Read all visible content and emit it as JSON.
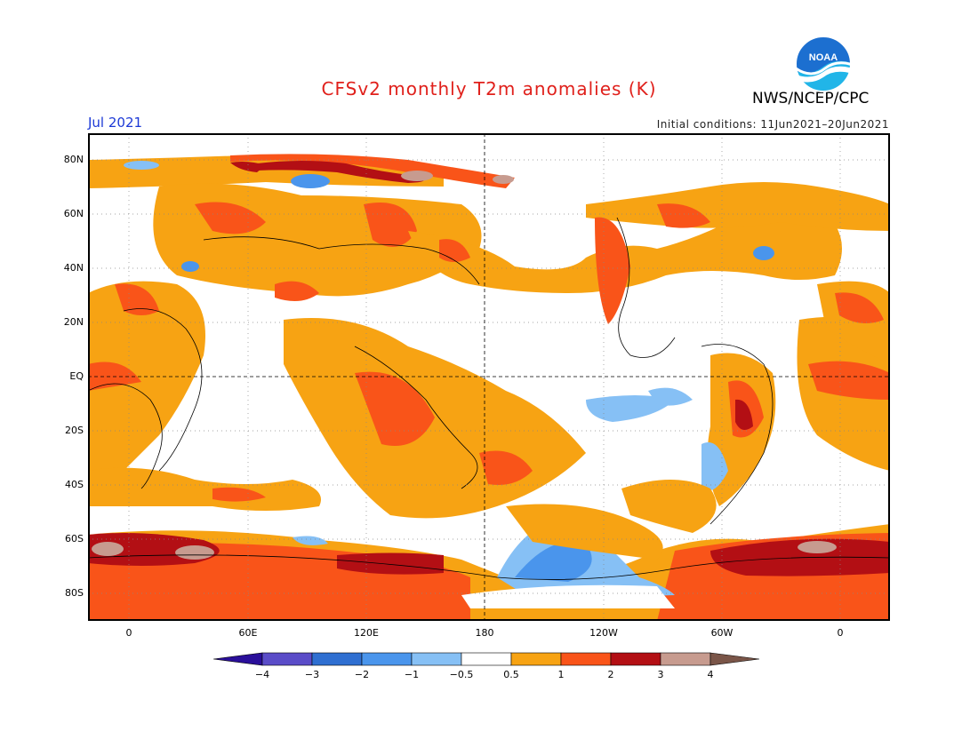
{
  "header": {
    "title": "CFSv2 monthly T2m anomalies (K)",
    "month": "Jul 2021",
    "agency": "NWS/NCEP/CPC",
    "initial_conditions": "Initial conditions: 11Jun2021–20Jun2021",
    "logo_text": "NOAA"
  },
  "map": {
    "lat_labels": [
      "80N",
      "60N",
      "40N",
      "20N",
      "EQ",
      "20S",
      "40S",
      "60S",
      "80S"
    ],
    "lon_labels": [
      "0",
      "60E",
      "120E",
      "180",
      "120W",
      "60W",
      "0"
    ],
    "central_longitude": 180,
    "grid": "dotted"
  },
  "colorbar": {
    "labels": [
      "−4",
      "−3",
      "−2",
      "−1",
      "−0.5",
      "0.5",
      "1",
      "2",
      "3",
      "4"
    ],
    "colors": [
      "#2a0f9a",
      "#5a4cc8",
      "#2f6fd1",
      "#4a95ec",
      "#86c0f5",
      "#ffffff",
      "#f7a313",
      "#f95419",
      "#b30f14",
      "#c79b8f",
      "#7a5548"
    ]
  },
  "colors": {
    "title": "#e0201b",
    "month": "#1c39d6",
    "noaa_blue": "#1c6fd0",
    "noaa_cyan": "#21b5e8"
  }
}
